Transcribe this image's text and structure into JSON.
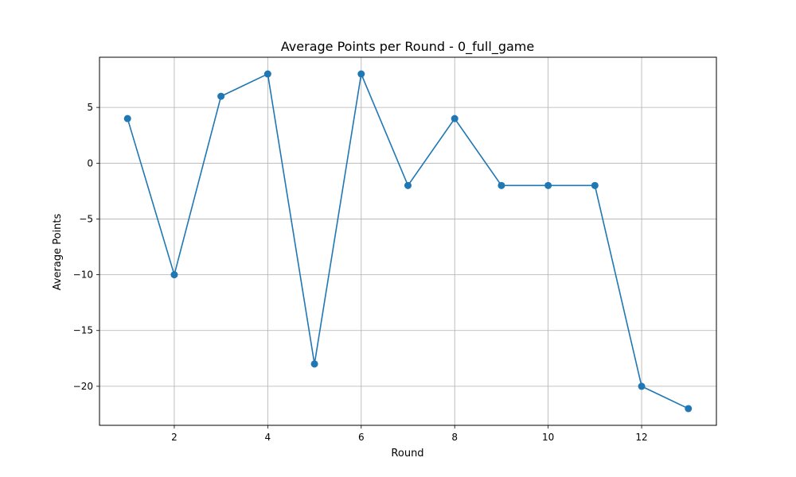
{
  "chart_data": {
    "type": "line",
    "title": "Average Points per Round - 0_full_game",
    "xlabel": "Round",
    "ylabel": "Average Points",
    "x": [
      1,
      2,
      3,
      4,
      5,
      6,
      7,
      8,
      9,
      10,
      11,
      12,
      13
    ],
    "series": [
      {
        "values": [
          4,
          -10,
          6,
          8,
          -18,
          8,
          -2,
          4,
          -2,
          -2,
          -2,
          -20,
          -22
        ]
      }
    ],
    "xlim": [
      0.4,
      13.6
    ],
    "ylim": [
      -23.5,
      9.5
    ],
    "xticks": [
      2,
      4,
      6,
      8,
      10,
      12
    ],
    "yticks": [
      5,
      0,
      -5,
      -10,
      -15,
      -20
    ],
    "ytick_labels": [
      "5",
      "0",
      "−5",
      "−10",
      "−15",
      "−20"
    ],
    "grid": true,
    "marker": "circle",
    "color": "#1f77b4"
  }
}
